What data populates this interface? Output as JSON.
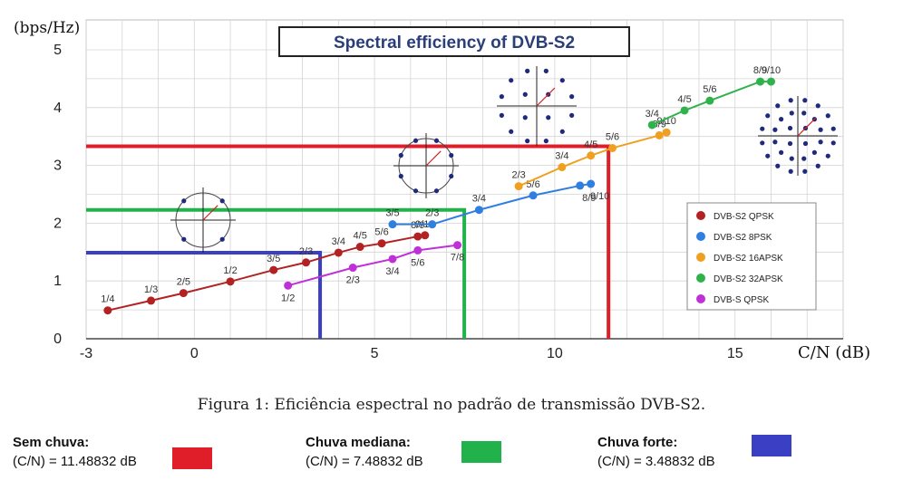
{
  "chart_data": {
    "type": "scatter",
    "title": "Spectral efficiency of DVB-S2",
    "xlabel": "C/N  (dB)",
    "ylabel": "(bps/Hz)",
    "xlim": [
      -3,
      18
    ],
    "ylim": [
      0,
      5
    ],
    "xticks": [
      -3,
      0,
      5,
      10,
      15
    ],
    "yticks": [
      0,
      1,
      2,
      3,
      4,
      5
    ],
    "grid": true,
    "legend_position": "right",
    "series": [
      {
        "name": "DVB-S2 QPSK",
        "color": "#b22222",
        "points": [
          {
            "x": -2.4,
            "y": 0.49,
            "label": "1/4"
          },
          {
            "x": -1.2,
            "y": 0.66,
            "label": "1/3"
          },
          {
            "x": -0.3,
            "y": 0.79,
            "label": "2/5"
          },
          {
            "x": 1.0,
            "y": 0.99,
            "label": "1/2"
          },
          {
            "x": 2.2,
            "y": 1.19,
            "label": "3/5"
          },
          {
            "x": 3.1,
            "y": 1.32,
            "label": "2/3"
          },
          {
            "x": 4.0,
            "y": 1.49,
            "label": "3/4"
          },
          {
            "x": 4.6,
            "y": 1.59,
            "label": "4/5"
          },
          {
            "x": 5.2,
            "y": 1.65,
            "label": "5/6"
          },
          {
            "x": 6.2,
            "y": 1.77,
            "label": "8/9"
          },
          {
            "x": 6.4,
            "y": 1.79,
            "label": "9/10"
          }
        ]
      },
      {
        "name": "DVB-S2 8PSK",
        "color": "#2f7fe0",
        "points": [
          {
            "x": 5.5,
            "y": 1.98,
            "label": "3/5"
          },
          {
            "x": 6.6,
            "y": 1.98,
            "label": "2/3"
          },
          {
            "x": 7.9,
            "y": 2.23,
            "label": "3/4"
          },
          {
            "x": 9.4,
            "y": 2.48,
            "label": "5/6"
          },
          {
            "x": 10.7,
            "y": 2.65,
            "label": "8/9"
          },
          {
            "x": 11.0,
            "y": 2.68,
            "label": "9/10"
          }
        ]
      },
      {
        "name": "DVB-S2 16APSK",
        "color": "#f0a020",
        "points": [
          {
            "x": 9.0,
            "y": 2.64,
            "label": "2/3"
          },
          {
            "x": 10.2,
            "y": 2.97,
            "label": "3/4"
          },
          {
            "x": 11.0,
            "y": 3.17,
            "label": "4/5"
          },
          {
            "x": 11.6,
            "y": 3.3,
            "label": "5/6"
          },
          {
            "x": 12.9,
            "y": 3.52,
            "label": "8/9"
          },
          {
            "x": 13.1,
            "y": 3.57,
            "label": "9/10"
          }
        ]
      },
      {
        "name": "DVB-S2 32APSK",
        "color": "#2fb24c",
        "points": [
          {
            "x": 12.7,
            "y": 3.7,
            "label": "3/4"
          },
          {
            "x": 13.6,
            "y": 3.95,
            "label": "4/5"
          },
          {
            "x": 14.3,
            "y": 4.12,
            "label": "5/6"
          },
          {
            "x": 15.7,
            "y": 4.45,
            "label": "8/9"
          },
          {
            "x": 16.0,
            "y": 4.45,
            "label": "9/10"
          }
        ]
      },
      {
        "name": "DVB-S QPSK",
        "color": "#c030d8",
        "points": [
          {
            "x": 2.6,
            "y": 0.92,
            "label": "1/2"
          },
          {
            "x": 4.4,
            "y": 1.23,
            "label": "2/3"
          },
          {
            "x": 5.5,
            "y": 1.38,
            "label": "3/4"
          },
          {
            "x": 6.2,
            "y": 1.53,
            "label": "5/6"
          },
          {
            "x": 7.3,
            "y": 1.62,
            "label": "7/8"
          }
        ]
      }
    ],
    "reference_lines": [
      {
        "id": "sem-chuva",
        "color": "#e01e2a",
        "y": 3.33,
        "x": 11.49
      },
      {
        "id": "chuva-mediana",
        "color": "#22b24c",
        "y": 2.23,
        "x": 7.49
      },
      {
        "id": "chuva-forte",
        "color": "#3a3fc4",
        "y": 1.49,
        "x": 3.49
      }
    ]
  },
  "caption": "Figura 1: Eficiência espectral no padrão de transmissão DVB-S2.",
  "conditions": [
    {
      "title": "Sem chuva:",
      "value": "(C/N) = 11.48832 dB",
      "color": "#e01e2a"
    },
    {
      "title": "Chuva mediana:",
      "value": "(C/N) = 7.48832 dB",
      "color": "#22b24c"
    },
    {
      "title": "Chuva forte:",
      "value": "(C/N) = 3.48832 dB",
      "color": "#3a3fc4"
    }
  ]
}
